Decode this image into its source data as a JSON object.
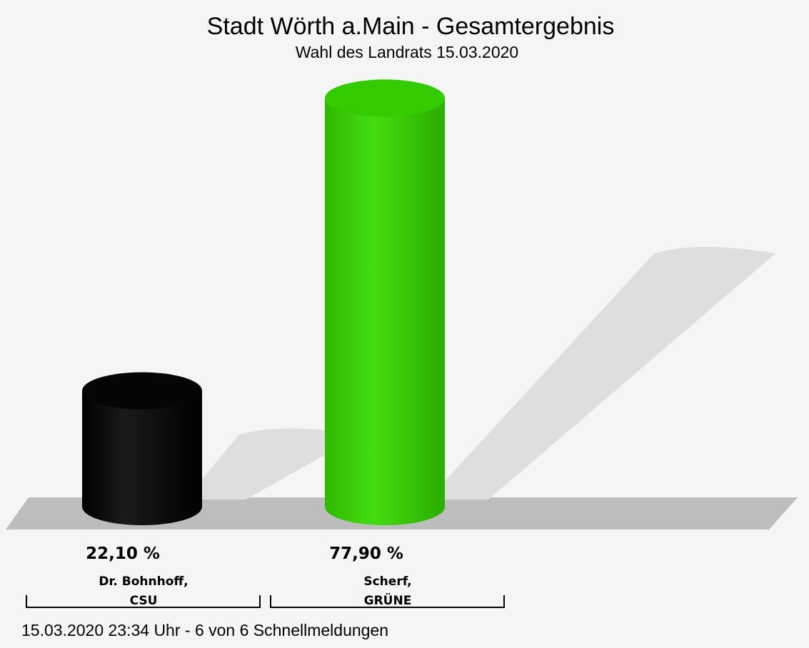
{
  "chart_data": {
    "type": "bar",
    "title": "Stadt Wörth a.Main - Gesamtergebnis",
    "subtitle": "Wahl des Landrats 15.03.2020",
    "categories": [
      {
        "line1": "Dr. Bohnhoff,",
        "line2": "CSU"
      },
      {
        "line1": "Scherf,",
        "line2": "GRÜNE"
      }
    ],
    "values": [
      22.1,
      77.9
    ],
    "value_labels": [
      "22,10 %",
      "77,90 %"
    ],
    "colors": [
      "#050505",
      "#33cc00"
    ],
    "ylim": [
      0,
      100
    ],
    "footer": "15.03.2020 23:34 Uhr - 6 von 6 Schnellmeldungen"
  }
}
